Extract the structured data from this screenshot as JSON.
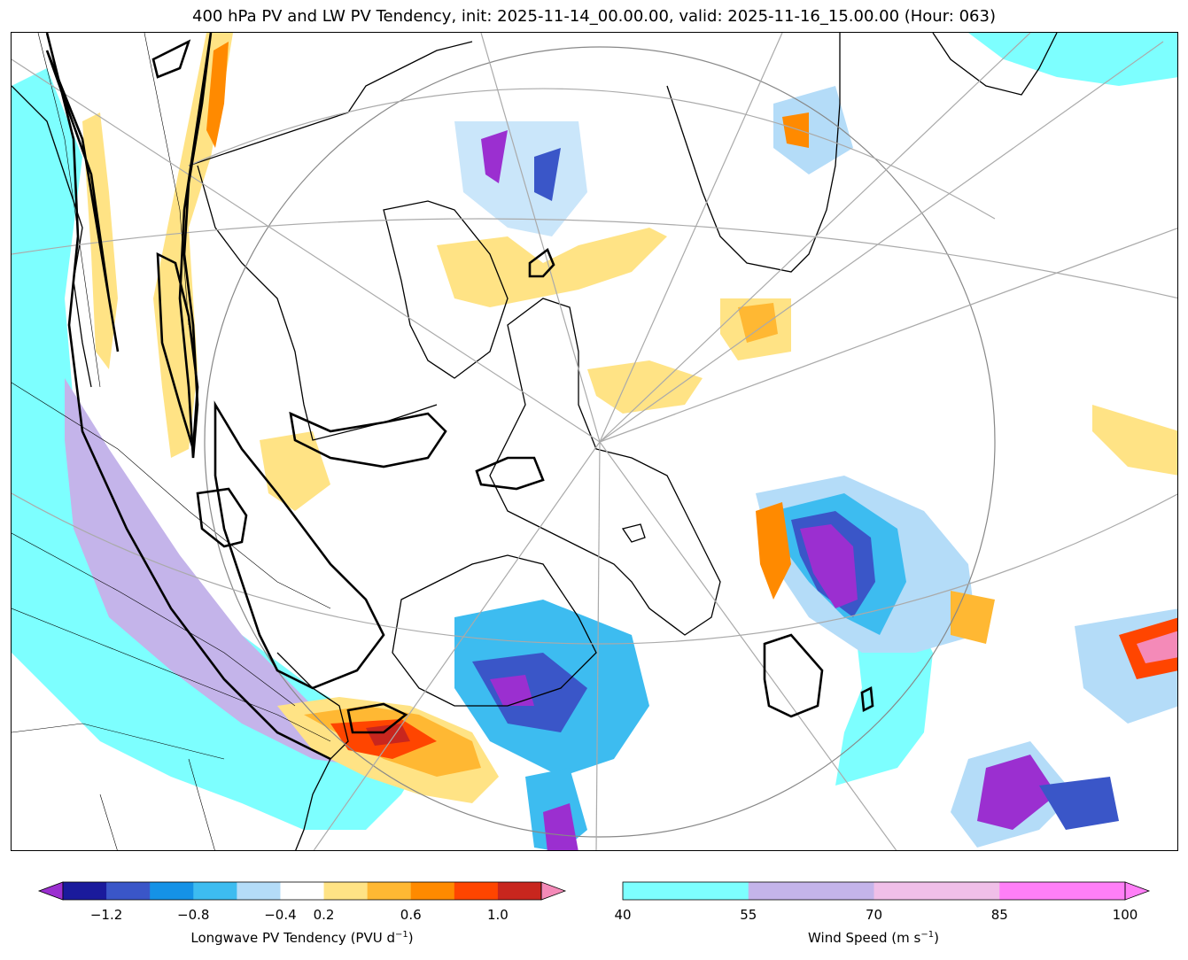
{
  "title": "400 hPa PV and LW PV Tendency, init: 2025-11-14_00.00.00, valid: 2025-11-16_15.00.00 (Hour: 063)",
  "colorbar_pv": {
    "label": "Longwave PV Tendency (PVU d",
    "label_sup": "−1",
    "label_end": ")",
    "ticks": [
      "−1.2",
      "−0.8",
      "−0.4",
      "0.2",
      "0.6",
      "1.0"
    ],
    "colors": [
      "#9b2fd0",
      "#1a1a9c",
      "#3a56c8",
      "#1592e6",
      "#3dbcf0",
      "#b4dcf8",
      "#ffffff",
      "#ffe385",
      "#ffb833",
      "#ff8a00",
      "#ff4500",
      "#c8261e",
      "#f48ab8"
    ]
  },
  "colorbar_wind": {
    "label": "Wind Speed (m s",
    "label_sup": "−1",
    "label_end": ")",
    "ticks": [
      "40",
      "55",
      "70",
      "85",
      "100"
    ],
    "colors": [
      "#7dffff",
      "#c4b4ea",
      "#f0bfe8",
      "#ff7ff7"
    ]
  }
}
